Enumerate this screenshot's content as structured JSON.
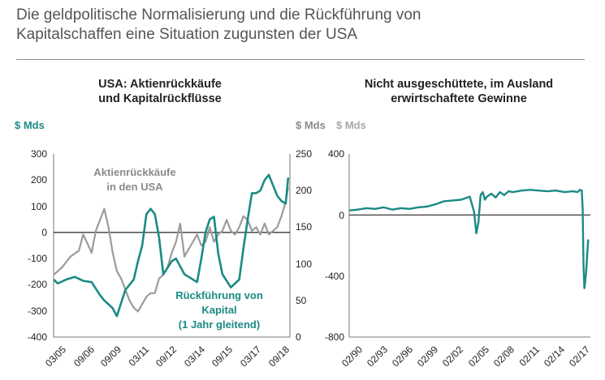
{
  "page": {
    "title_line1": "Die geldpolitische Normalisierung und die Rückführung von",
    "title_line2": "Kapitalschaffen eine Situation zugunsten der USA"
  },
  "colors": {
    "teal": "#1b8a84",
    "gray": "#9b9b9b",
    "text": "#222222"
  },
  "chart_data": [
    {
      "type": "line",
      "title": "USA: Aktienrückkäufe und Kapitalrückflüsse",
      "title_line1": "USA: Aktienrückkäufe",
      "title_line2": "und Kapitalrückflüsse",
      "left_unit": "$ Mds",
      "right_unit": "$ Mds",
      "left_ylim": [
        -400,
        300
      ],
      "left_ticks": [
        "300",
        "200",
        "100",
        "0",
        "-100",
        "-200",
        "-300",
        "-400"
      ],
      "right_ylim": [
        0,
        250
      ],
      "right_ticks": [
        "250",
        "200",
        "150",
        "100",
        "50",
        "0"
      ],
      "xlim": [
        2005.0,
        2019.0
      ],
      "x_tick_labels": [
        "03/05",
        "09/06",
        "09/09",
        "03/11",
        "09/12",
        "03/14",
        "09/15",
        "03/17",
        "09/18"
      ],
      "annotations": {
        "buybacks_line1": "Aktienrückkäufe",
        "buybacks_line2": "in den USA",
        "repat_line1": "Rückführung von",
        "repat_line2": "Kapital",
        "repat_line3": "(1 Jahr gleitend)"
      },
      "series": [
        {
          "name": "Rückführung von Kapital (1 Jahr gleitend)",
          "axis": "left",
          "color": "#1b8a84",
          "x": [
            2005.0,
            2005.25,
            2005.75,
            2006.25,
            2006.75,
            2007.25,
            2007.75,
            2008.0,
            2008.25,
            2008.5,
            2008.75,
            2009.25,
            2009.75,
            2010.0,
            2010.25,
            2010.5,
            2010.75,
            2011.0,
            2011.25,
            2011.5,
            2012.0,
            2012.25,
            2012.5,
            2012.75,
            2013.0,
            2013.5,
            2013.75,
            2014.0,
            2014.25,
            2014.5,
            2014.75,
            2015.0,
            2015.5,
            2016.0,
            2016.25,
            2016.5,
            2016.75,
            2017.0,
            2017.25,
            2017.5,
            2017.75,
            2018.0,
            2018.25,
            2018.5,
            2018.75,
            2018.9
          ],
          "values": [
            -180,
            -195,
            -180,
            -170,
            -185,
            -190,
            -240,
            -260,
            -275,
            -290,
            -320,
            -220,
            -180,
            -110,
            -50,
            70,
            90,
            70,
            -20,
            -160,
            -110,
            -100,
            -130,
            -160,
            -170,
            -190,
            -100,
            0,
            50,
            60,
            -80,
            -160,
            -210,
            -180,
            -60,
            50,
            150,
            150,
            160,
            200,
            220,
            180,
            140,
            120,
            110,
            210
          ]
        },
        {
          "name": "Aktienrückkäufe in den USA",
          "axis": "right",
          "color": "#9b9b9b",
          "x": [
            2005.0,
            2005.5,
            2006.0,
            2006.5,
            2006.75,
            2007.0,
            2007.25,
            2007.5,
            2007.75,
            2008.0,
            2008.25,
            2008.5,
            2008.75,
            2009.0,
            2009.25,
            2009.5,
            2009.75,
            2010.0,
            2010.25,
            2010.5,
            2010.75,
            2011.0,
            2011.25,
            2011.5,
            2011.75,
            2012.0,
            2012.25,
            2012.5,
            2012.75,
            2013.0,
            2013.25,
            2013.5,
            2013.75,
            2014.0,
            2014.25,
            2014.5,
            2014.75,
            2015.0,
            2015.25,
            2015.5,
            2015.75,
            2016.0,
            2016.25,
            2016.5,
            2016.75,
            2017.0,
            2017.25,
            2017.5,
            2017.75,
            2018.0,
            2018.25,
            2018.5,
            2018.75,
            2018.9
          ],
          "values": [
            85,
            95,
            110,
            118,
            140,
            128,
            115,
            145,
            160,
            175,
            150,
            115,
            90,
            80,
            65,
            50,
            40,
            35,
            45,
            55,
            60,
            60,
            80,
            85,
            95,
            115,
            130,
            155,
            110,
            120,
            130,
            140,
            125,
            130,
            150,
            130,
            140,
            145,
            160,
            145,
            140,
            150,
            165,
            160,
            145,
            150,
            140,
            155,
            140,
            145,
            150,
            165,
            185,
            205
          ]
        }
      ]
    },
    {
      "type": "line",
      "title": "Nicht ausgeschüttete, im Ausland erwirtschaftete Gewinne",
      "title_line1": "Nicht ausgeschüttete, im Ausland",
      "title_line2": "erwirtschaftete Gewinne",
      "unit": "$ Mds",
      "ylim": [
        -800,
        400
      ],
      "y_ticks": [
        "400",
        "0",
        "-400",
        "-800"
      ],
      "xlim": [
        1990.0,
        2018.0
      ],
      "x_tick_labels": [
        "02/90",
        "02/93",
        "02/96",
        "02/99",
        "02/02",
        "02/05",
        "02/08",
        "02/11",
        "02/14",
        "02/17"
      ],
      "series": [
        {
          "name": "Nicht ausgeschüttete, im Ausland erwirtschaftete Gewinne",
          "color": "#1b8a84",
          "x": [
            1990.0,
            1991.0,
            1992.0,
            1993.0,
            1994.0,
            1995.0,
            1996.0,
            1997.0,
            1998.0,
            1999.0,
            2000.0,
            2001.0,
            2002.0,
            2003.0,
            2004.0,
            2004.5,
            2004.75,
            2005.0,
            2005.25,
            2005.5,
            2005.75,
            2006.0,
            2006.5,
            2007.0,
            2007.5,
            2008.0,
            2008.5,
            2009.0,
            2010.0,
            2011.0,
            2012.0,
            2013.0,
            2014.0,
            2015.0,
            2016.0,
            2016.5,
            2016.8,
            2017.0,
            2017.1,
            2017.2,
            2017.3,
            2017.5,
            2017.75
          ],
          "values": [
            30,
            35,
            45,
            40,
            50,
            35,
            45,
            40,
            50,
            55,
            70,
            90,
            95,
            100,
            120,
            20,
            -120,
            -50,
            130,
            150,
            100,
            120,
            140,
            115,
            150,
            130,
            155,
            150,
            160,
            165,
            160,
            155,
            160,
            150,
            155,
            150,
            165,
            160,
            40,
            -320,
            -480,
            -380,
            -160
          ]
        }
      ]
    }
  ]
}
